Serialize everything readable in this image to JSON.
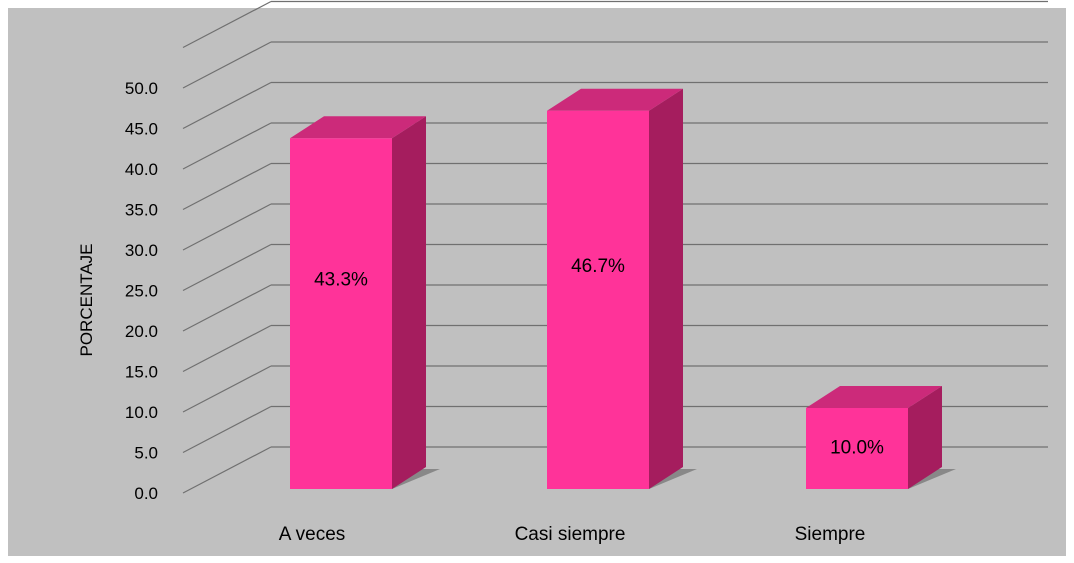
{
  "chart_data": {
    "type": "bar",
    "categories": [
      "A veces",
      "Casi siempre",
      "Siempre"
    ],
    "values": [
      43.3,
      46.7,
      10.0
    ],
    "data_labels": [
      "43.3%",
      "46.7%",
      "10.0%"
    ],
    "title": "",
    "xlabel": "",
    "ylabel": "PORCENTAJE",
    "ylim": [
      0,
      50
    ],
    "yticks": [
      0,
      5,
      10,
      15,
      20,
      25,
      30,
      35,
      40,
      45,
      50
    ],
    "ytick_labels": [
      "0.0",
      "5.0",
      "10.0",
      "15.0",
      "20.0",
      "25.0",
      "30.0",
      "35.0",
      "40.0",
      "45.0",
      "50.0"
    ],
    "grid": true,
    "legend": "none",
    "colors": {
      "bar_front": "#ff3399",
      "bar_side": "#a51d5e",
      "bar_top": "#cc2a7a",
      "background": "#c0c0c0",
      "grid": "#707070"
    }
  }
}
